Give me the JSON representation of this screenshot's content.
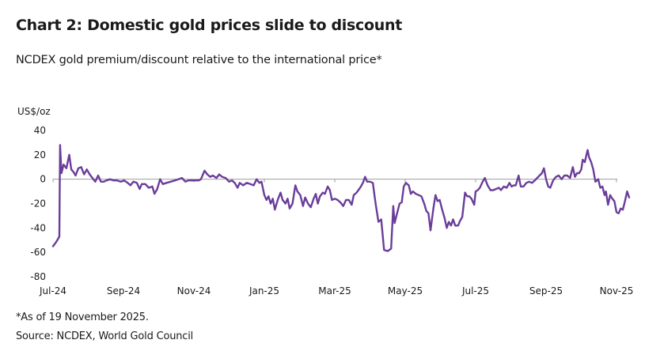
{
  "title": "Chart 2: Domestic gold prices slide to discount",
  "subtitle": "NCDEX gold premium/discount relative to the international price*",
  "footnote": "*As of 19 November 2025.",
  "source": "Source: NCDEX, World Gold Council",
  "colors": {
    "line": "#6a3d9a",
    "axis": "#9e9e9e",
    "text": "#1a1a1a"
  },
  "chart_data": {
    "type": "line",
    "title": "Chart 2: Domestic gold prices slide to discount",
    "subtitle": "NCDEX gold premium/discount relative to the international price*",
    "ylabel": "US$/oz",
    "xlabel": "",
    "ylim": [
      -80,
      40
    ],
    "yticks": [
      40,
      20,
      0,
      -20,
      -40,
      -60,
      -80
    ],
    "xlim": [
      0,
      16
    ],
    "xtick_positions": [
      0,
      2,
      4,
      6,
      8,
      10,
      12,
      14,
      16
    ],
    "xticks": [
      "Jul-24",
      "Sep-24",
      "Nov-24",
      "Jan-25",
      "Mar-25",
      "May-25",
      "Jul-25",
      "Sep-25",
      "Nov-25"
    ],
    "x_units": "months since Jul-24",
    "grid": false,
    "legend": "none",
    "series": [
      {
        "name": "NCDEX gold premium/discount (US$/oz)",
        "points": [
          [
            0.0,
            -55
          ],
          [
            0.1,
            -51
          ],
          [
            0.18,
            -47
          ],
          [
            0.2,
            28
          ],
          [
            0.24,
            5
          ],
          [
            0.3,
            12
          ],
          [
            0.38,
            9
          ],
          [
            0.46,
            20
          ],
          [
            0.52,
            8
          ],
          [
            0.58,
            6
          ],
          [
            0.64,
            3
          ],
          [
            0.72,
            9
          ],
          [
            0.8,
            10
          ],
          [
            0.88,
            4
          ],
          [
            0.96,
            8
          ],
          [
            1.04,
            4
          ],
          [
            1.12,
            1
          ],
          [
            1.2,
            -2
          ],
          [
            1.28,
            3
          ],
          [
            1.36,
            -2
          ],
          [
            1.44,
            -2
          ],
          [
            1.52,
            -1
          ],
          [
            1.62,
            0
          ],
          [
            1.72,
            -1
          ],
          [
            1.82,
            -1
          ],
          [
            1.92,
            -2
          ],
          [
            2.02,
            -1
          ],
          [
            2.12,
            -3
          ],
          [
            2.2,
            -5
          ],
          [
            2.28,
            -2
          ],
          [
            2.38,
            -3
          ],
          [
            2.46,
            -8
          ],
          [
            2.52,
            -4
          ],
          [
            2.62,
            -4
          ],
          [
            2.72,
            -7
          ],
          [
            2.82,
            -6
          ],
          [
            2.88,
            -12
          ],
          [
            2.96,
            -8
          ],
          [
            3.04,
            0
          ],
          [
            3.12,
            -4
          ],
          [
            3.22,
            -3
          ],
          [
            3.34,
            -2
          ],
          [
            3.46,
            -1
          ],
          [
            3.56,
            0
          ],
          [
            3.66,
            1
          ],
          [
            3.76,
            -2
          ],
          [
            3.84,
            -1
          ],
          [
            3.94,
            -1
          ],
          [
            4.04,
            -1
          ],
          [
            4.14,
            -1
          ],
          [
            4.2,
            0
          ],
          [
            4.3,
            7
          ],
          [
            4.38,
            4
          ],
          [
            4.46,
            2
          ],
          [
            4.54,
            3
          ],
          [
            4.64,
            1
          ],
          [
            4.72,
            4
          ],
          [
            4.8,
            2
          ],
          [
            4.9,
            1
          ],
          [
            5.0,
            -2
          ],
          [
            5.08,
            -1
          ],
          [
            5.16,
            -3
          ],
          [
            5.24,
            -7
          ],
          [
            5.3,
            -3
          ],
          [
            5.4,
            -5
          ],
          [
            5.5,
            -3
          ],
          [
            5.6,
            -4
          ],
          [
            5.7,
            -5
          ],
          [
            5.78,
            0
          ],
          [
            5.86,
            -3
          ],
          [
            5.92,
            -2
          ],
          [
            6.0,
            -13
          ],
          [
            6.06,
            -17
          ],
          [
            6.12,
            -14
          ],
          [
            6.18,
            -20
          ],
          [
            6.24,
            -16
          ],
          [
            6.3,
            -25
          ],
          [
            6.38,
            -17
          ],
          [
            6.46,
            -11
          ],
          [
            6.52,
            -17
          ],
          [
            6.6,
            -20
          ],
          [
            6.66,
            -16
          ],
          [
            6.72,
            -24
          ],
          [
            6.8,
            -20
          ],
          [
            6.88,
            -5
          ],
          [
            6.94,
            -10
          ],
          [
            7.02,
            -13
          ],
          [
            7.1,
            -22
          ],
          [
            7.16,
            -15
          ],
          [
            7.24,
            -20
          ],
          [
            7.32,
            -23
          ],
          [
            7.4,
            -16
          ],
          [
            7.46,
            -12
          ],
          [
            7.52,
            -20
          ],
          [
            7.58,
            -14
          ],
          [
            7.66,
            -11
          ],
          [
            7.72,
            -12
          ],
          [
            7.8,
            -6
          ],
          [
            7.86,
            -9
          ],
          [
            7.92,
            -17
          ],
          [
            8.0,
            -16
          ],
          [
            8.08,
            -17
          ],
          [
            8.16,
            -19
          ],
          [
            8.24,
            -22
          ],
          [
            8.32,
            -17
          ],
          [
            8.4,
            -17
          ],
          [
            8.48,
            -21
          ],
          [
            8.54,
            -13
          ],
          [
            8.62,
            -11
          ],
          [
            8.72,
            -7
          ],
          [
            8.8,
            -3
          ],
          [
            8.86,
            2
          ],
          [
            8.92,
            -2
          ],
          [
            9.0,
            -2
          ],
          [
            9.08,
            -3
          ],
          [
            9.16,
            -20
          ],
          [
            9.24,
            -35
          ],
          [
            9.32,
            -33
          ],
          [
            9.4,
            -58
          ],
          [
            9.5,
            -59
          ],
          [
            9.6,
            -57
          ],
          [
            9.66,
            -22
          ],
          [
            9.7,
            -36
          ],
          [
            9.76,
            -29
          ],
          [
            9.84,
            -20
          ],
          [
            9.9,
            -19
          ],
          [
            9.96,
            -6
          ],
          [
            10.02,
            -3
          ],
          [
            10.1,
            -5
          ],
          [
            10.16,
            -12
          ],
          [
            10.22,
            -10
          ],
          [
            10.3,
            -12
          ],
          [
            10.38,
            -13
          ],
          [
            10.46,
            -14
          ],
          [
            10.54,
            -20
          ],
          [
            10.6,
            -26
          ],
          [
            10.66,
            -28
          ],
          [
            10.72,
            -42
          ],
          [
            10.8,
            -24
          ],
          [
            10.86,
            -13
          ],
          [
            10.92,
            -18
          ],
          [
            10.98,
            -17
          ],
          [
            11.04,
            -24
          ],
          [
            11.12,
            -32
          ],
          [
            11.18,
            -40
          ],
          [
            11.24,
            -35
          ],
          [
            11.3,
            -38
          ],
          [
            11.36,
            -33
          ],
          [
            11.42,
            -38
          ],
          [
            11.5,
            -38
          ],
          [
            11.56,
            -34
          ],
          [
            11.62,
            -31
          ],
          [
            11.7,
            -11
          ],
          [
            11.76,
            -14
          ],
          [
            11.82,
            -14
          ],
          [
            11.88,
            -16
          ],
          [
            11.96,
            -21
          ],
          [
            12.0,
            -10
          ],
          [
            12.06,
            -9
          ],
          [
            12.12,
            -7
          ],
          [
            12.2,
            -2
          ],
          [
            12.26,
            1
          ],
          [
            12.34,
            -5
          ],
          [
            12.42,
            -9
          ],
          [
            12.5,
            -9
          ],
          [
            12.58,
            -8
          ],
          [
            12.66,
            -7
          ],
          [
            12.72,
            -9
          ],
          [
            12.8,
            -6
          ],
          [
            12.88,
            -7
          ],
          [
            12.96,
            -3
          ],
          [
            13.02,
            -6
          ],
          [
            13.08,
            -5
          ],
          [
            13.14,
            -5
          ],
          [
            13.22,
            3
          ],
          [
            13.28,
            -6
          ],
          [
            13.36,
            -6
          ],
          [
            13.44,
            -3
          ],
          [
            13.52,
            -2
          ],
          [
            13.6,
            -3
          ],
          [
            13.68,
            -1
          ],
          [
            13.78,
            2
          ],
          [
            13.88,
            5
          ],
          [
            13.94,
            9
          ],
          [
            14.0,
            0
          ],
          [
            14.06,
            -6
          ],
          [
            14.12,
            -7
          ],
          [
            14.2,
            -1
          ],
          [
            14.28,
            2
          ],
          [
            14.36,
            3
          ],
          [
            14.44,
            0
          ],
          [
            14.52,
            3
          ],
          [
            14.6,
            3
          ],
          [
            14.68,
            1
          ],
          [
            14.76,
            10
          ],
          [
            14.82,
            2
          ],
          [
            14.88,
            5
          ],
          [
            14.94,
            5
          ],
          [
            15.0,
            8
          ],
          [
            15.04,
            16
          ],
          [
            15.1,
            14
          ],
          [
            15.18,
            24
          ],
          [
            15.22,
            18
          ],
          [
            15.28,
            14
          ],
          [
            15.34,
            8
          ],
          [
            15.4,
            -2
          ],
          [
            15.48,
            0
          ],
          [
            15.54,
            -7
          ],
          [
            15.6,
            -6
          ],
          [
            15.66,
            -13
          ],
          [
            15.7,
            -10
          ],
          [
            15.76,
            -21
          ],
          [
            15.82,
            -13
          ],
          [
            15.88,
            -16
          ],
          [
            15.94,
            -18
          ],
          [
            16.0,
            -27
          ],
          [
            16.06,
            -28
          ],
          [
            16.12,
            -24
          ],
          [
            16.18,
            -25
          ],
          [
            16.24,
            -18
          ],
          [
            16.3,
            -10
          ],
          [
            16.36,
            -15
          ]
        ]
      }
    ]
  }
}
